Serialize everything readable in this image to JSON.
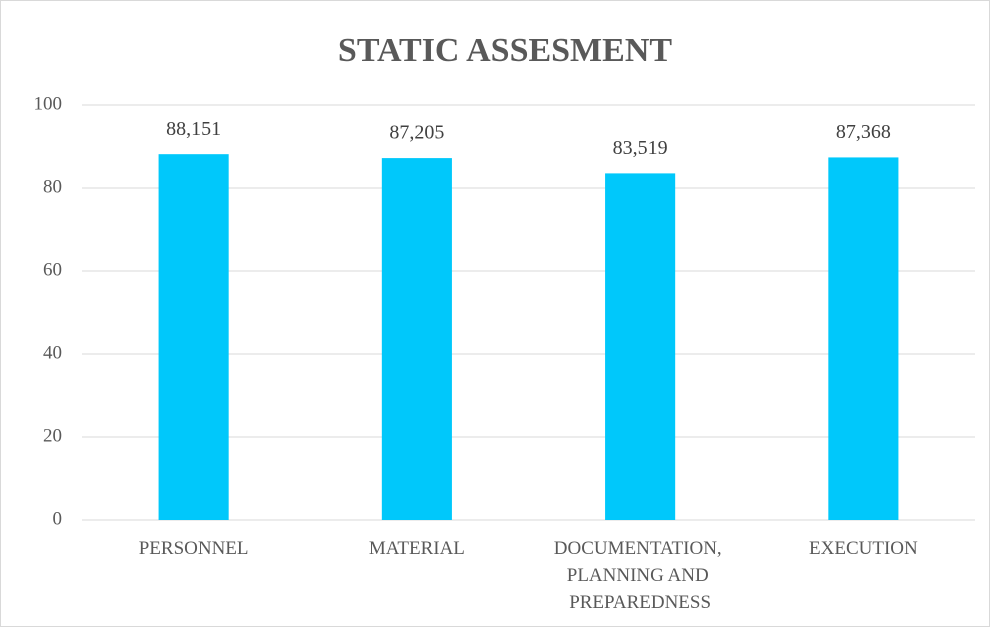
{
  "chart_data": {
    "type": "bar",
    "title": "STATIC ASSESMENT",
    "categories": [
      "PERSONNEL",
      "MATERIAL",
      "DOCUMENTATION, PLANNING AND PREPAREDNESS",
      "EXECUTION"
    ],
    "values": [
      88.151,
      87.205,
      83.519,
      87.368
    ],
    "value_labels": [
      "88,151",
      "87,205",
      "83,519",
      "87,368"
    ],
    "color": "#00c8fb",
    "ylim": [
      0,
      100
    ],
    "yticks": [
      0,
      20,
      40,
      60,
      80,
      100
    ],
    "grid": true
  }
}
